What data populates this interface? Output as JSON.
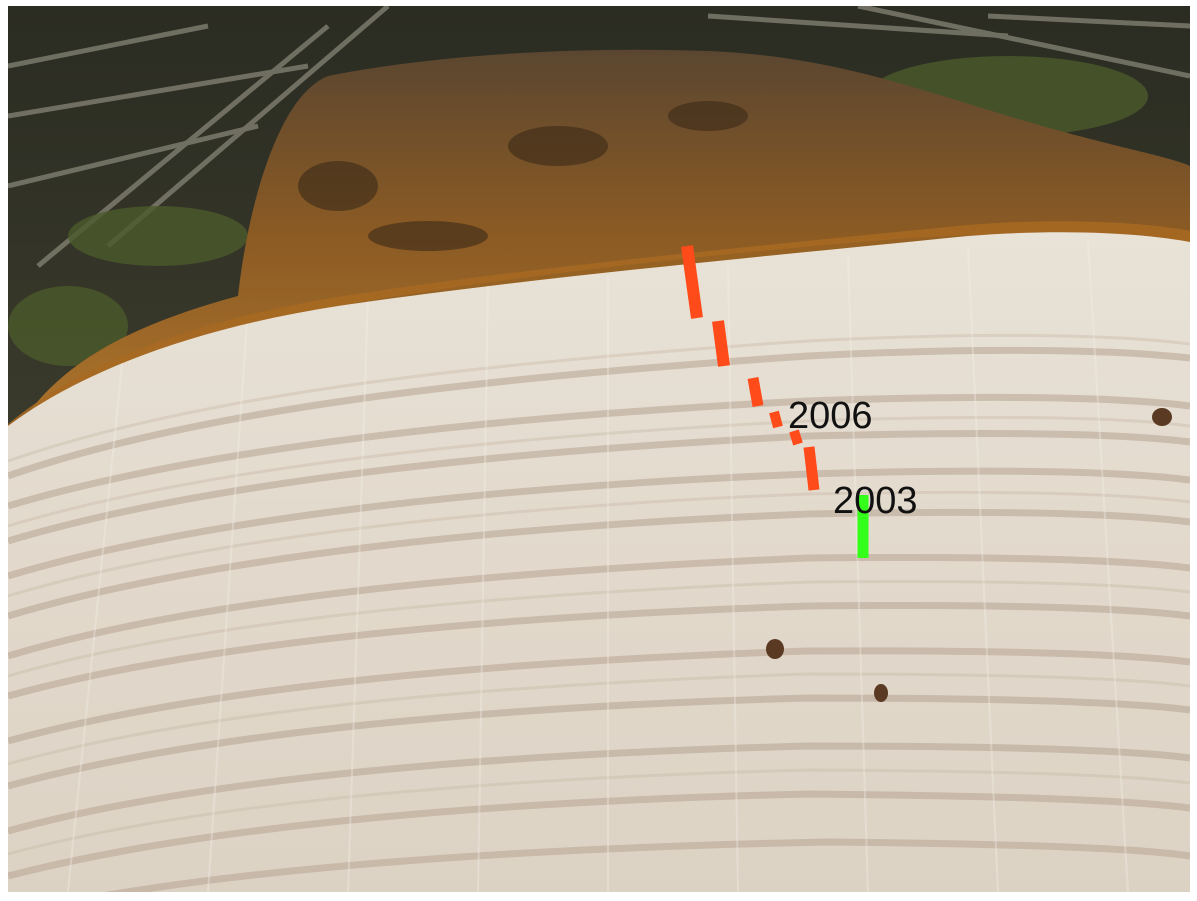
{
  "annotations": {
    "label_2006": "2006",
    "label_2003": "2003"
  },
  "colors": {
    "marker_red": "#ff4a1a",
    "marker_green": "#33ff1a",
    "wood_light": "#e6dfd4",
    "wood_ring": "#b9a796",
    "bark_brown": "#7a4a1c",
    "moss_dark": "#3a3a28"
  }
}
